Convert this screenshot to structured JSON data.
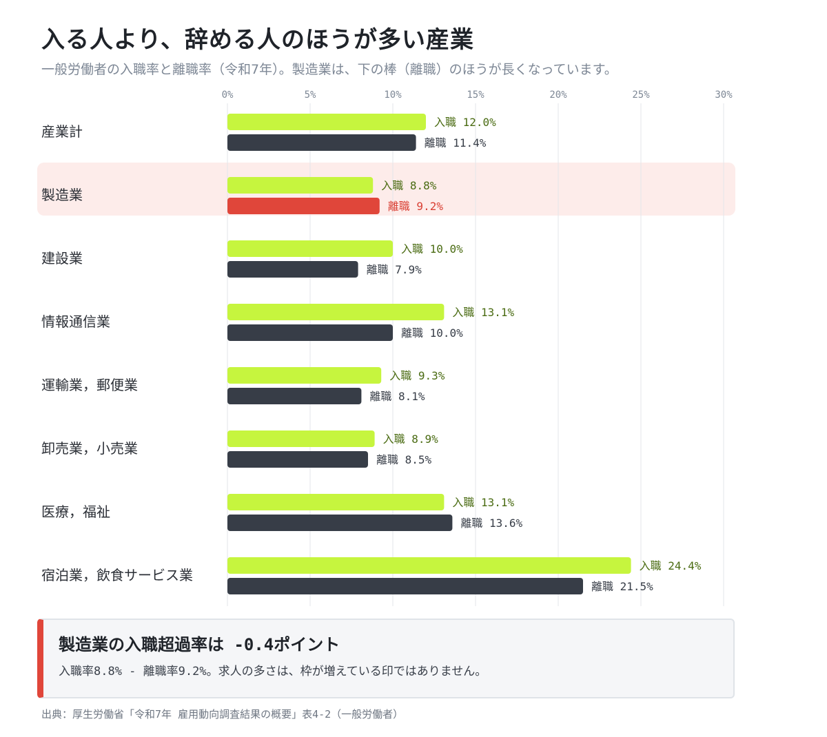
{
  "header": {
    "title": "入る人より、辞める人のほうが多い産業",
    "subtitle": "一般労働者の入職率と離職率（令和7年）。製造業は、下の棒（離職）のほうが長くなっています。"
  },
  "colors": {
    "entry_bar": "#c6f53e",
    "entry_text": "#4a6b12",
    "exit_bar": "#373d47",
    "exit_text": "#373d47",
    "highlight_bar": "#e0463a",
    "highlight_text": "#d93f33",
    "highlight_band": "#fdecea",
    "grid": "#e3e6ea",
    "tick_text": "#7d8795"
  },
  "chart_data": {
    "type": "bar",
    "orientation": "horizontal",
    "xlim": [
      0,
      30
    ],
    "ticks": [
      "0%",
      "5%",
      "10%",
      "15%",
      "20%",
      "25%",
      "30%"
    ],
    "tick_values": [
      0,
      5,
      10,
      15,
      20,
      25,
      30
    ],
    "grid": true,
    "highlight_category": "製造業",
    "categories": [
      "産業計",
      "製造業",
      "建設業",
      "情報通信業",
      "運輸業，郵便業",
      "卸売業，小売業",
      "医療，福祉",
      "宿泊業，飲食サービス業"
    ],
    "series": [
      {
        "name": "入職",
        "values": [
          12.0,
          8.8,
          10.0,
          13.1,
          9.3,
          8.9,
          13.1,
          24.4
        ],
        "labels": [
          "入職 12.0%",
          "入職 8.8%",
          "入職 10.0%",
          "入職 13.1%",
          "入職 9.3%",
          "入職 8.9%",
          "入職 13.1%",
          "入職 24.4%"
        ]
      },
      {
        "name": "離職",
        "values": [
          11.4,
          9.2,
          7.9,
          10.0,
          8.1,
          8.5,
          13.6,
          21.5
        ],
        "labels": [
          "離職 11.4%",
          "離職 9.2%",
          "離職 7.9%",
          "離職 10.0%",
          "離職 8.1%",
          "離職 8.5%",
          "離職 13.6%",
          "離職 21.5%"
        ]
      }
    ]
  },
  "callout": {
    "title": "製造業の入職超過率は -0.4ポイント",
    "text": "入職率8.8% - 離職率9.2%。求人の多さは、枠が増えている印ではありません。"
  },
  "source": "出典：厚生労働省「令和7年 雇用動向調査結果の概要」表4-2（一般労働者）"
}
